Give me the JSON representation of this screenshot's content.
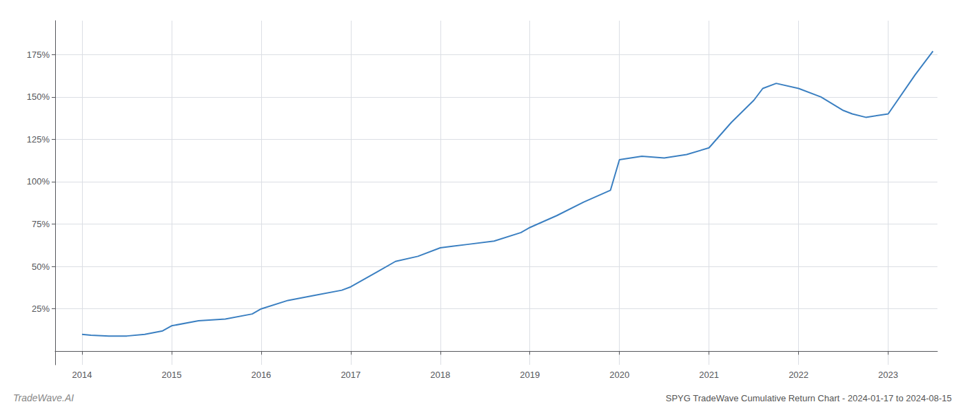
{
  "chart_data": {
    "type": "line",
    "title": "SPYG TradeWave Cumulative Return Chart - 2024-01-17 to 2024-08-15",
    "annotations": [
      "TradeWave.AI"
    ],
    "color": "#3a7fc1",
    "x": [
      2014.0,
      2014.1,
      2014.3,
      2014.5,
      2014.7,
      2014.9,
      2015.0,
      2015.3,
      2015.6,
      2015.9,
      2016.0,
      2016.3,
      2016.6,
      2016.9,
      2017.0,
      2017.3,
      2017.5,
      2017.75,
      2018.0,
      2018.15,
      2018.3,
      2018.6,
      2018.9,
      2019.0,
      2019.3,
      2019.6,
      2019.9,
      2020.0,
      2020.25,
      2020.5,
      2020.75,
      2021.0,
      2021.25,
      2021.5,
      2021.6,
      2021.75,
      2022.0,
      2022.25,
      2022.5,
      2022.6,
      2022.75,
      2023.0,
      2023.3,
      2023.5
    ],
    "values": [
      10,
      9.5,
      9,
      9,
      10,
      12,
      15,
      18,
      19,
      22,
      25,
      30,
      33,
      36,
      38,
      47,
      53,
      56,
      61,
      62,
      63,
      65,
      70,
      73,
      80,
      88,
      95,
      113,
      115,
      114,
      116,
      120,
      135,
      148,
      155,
      158,
      155,
      150,
      142,
      140,
      138,
      140,
      163,
      177
    ],
    "xlim": [
      2013.7,
      2023.55
    ],
    "xticks": [
      2014,
      2015,
      2016,
      2017,
      2018,
      2019,
      2020,
      2021,
      2022,
      2023
    ],
    "ylim": [
      -8,
      195
    ],
    "yticks": [
      {
        "value": 25,
        "label": "25%"
      },
      {
        "value": 50,
        "label": "50%"
      },
      {
        "value": 75,
        "label": "75%"
      },
      {
        "value": 100,
        "label": "100%"
      },
      {
        "value": 125,
        "label": "125%"
      },
      {
        "value": 150,
        "label": "150%"
      },
      {
        "value": 175,
        "label": "175%"
      }
    ],
    "grid": true
  }
}
